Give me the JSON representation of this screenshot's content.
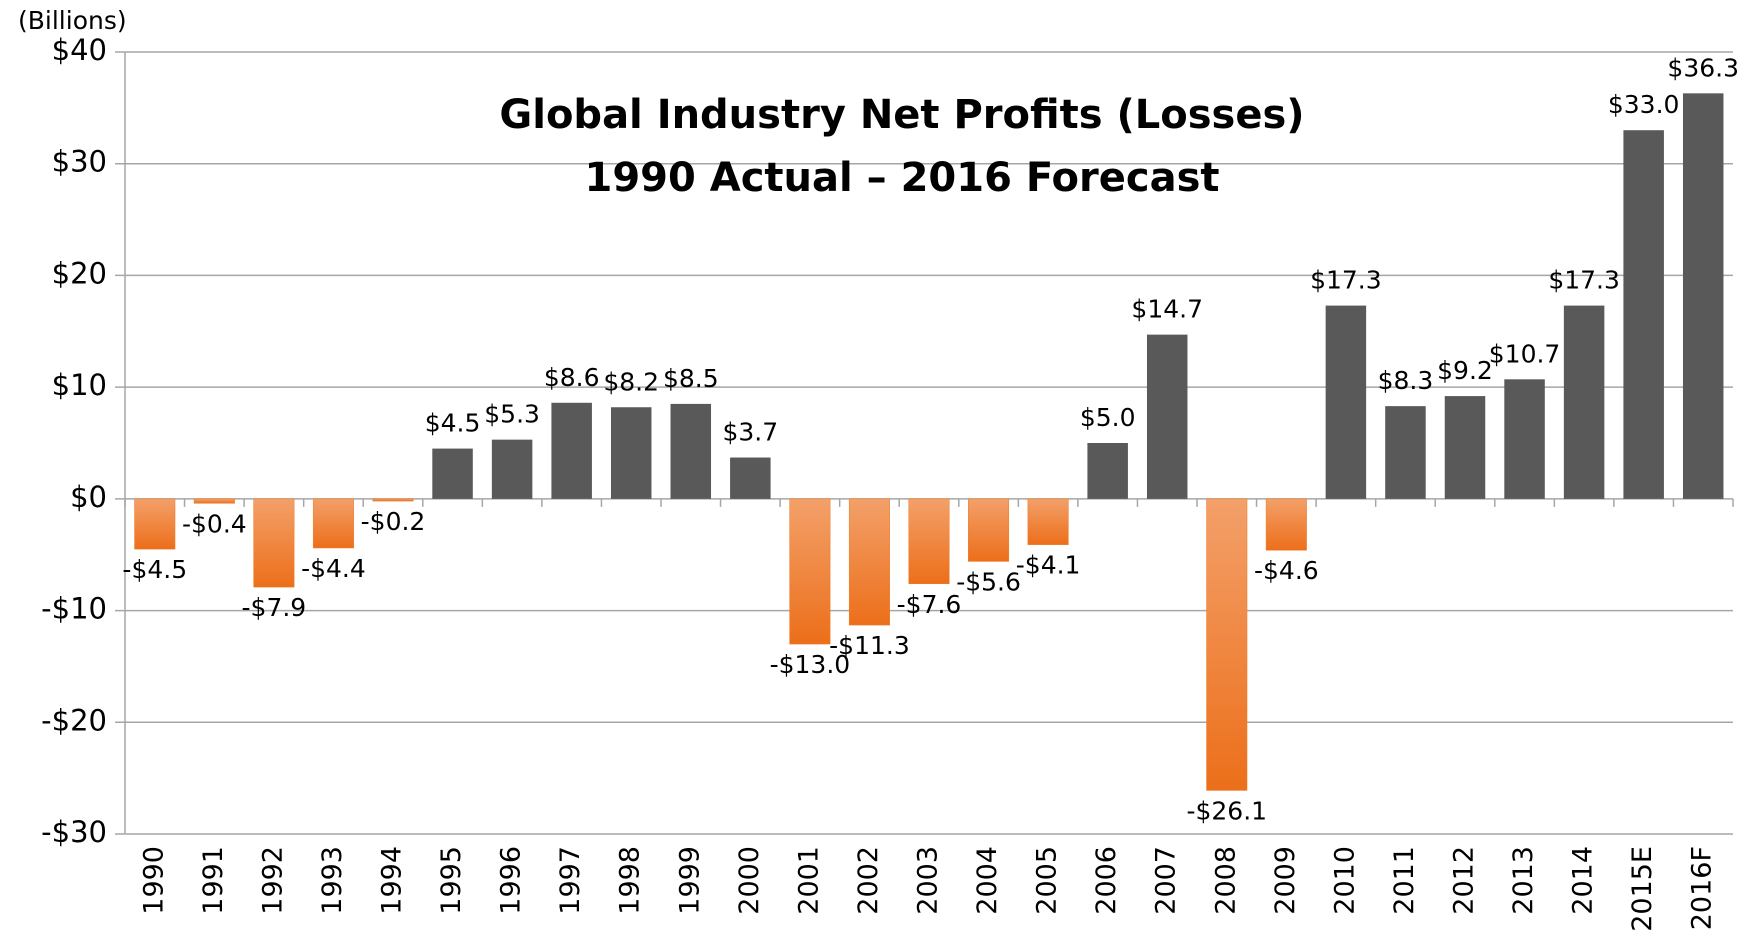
{
  "chart_data": {
    "type": "bar",
    "title": "Global Industry Net Profits (Losses)",
    "subtitle": "1990 Actual – 2016 Forecast",
    "y_axis_label": "(Billions)",
    "categories": [
      "1990",
      "1991",
      "1992",
      "1993",
      "1994",
      "1995",
      "1996",
      "1997",
      "1998",
      "1999",
      "2000",
      "2001",
      "2002",
      "2003",
      "2004",
      "2005",
      "2006",
      "2007",
      "2008",
      "2009",
      "2010",
      "2011",
      "2012",
      "2013",
      "2014",
      "2015E",
      "2016F"
    ],
    "values": [
      -4.5,
      -0.4,
      -7.9,
      -4.4,
      -0.2,
      4.5,
      5.3,
      8.6,
      8.2,
      8.5,
      3.7,
      -13.0,
      -11.3,
      -7.6,
      -5.6,
      -4.1,
      5.0,
      14.7,
      -26.1,
      -4.6,
      17.3,
      8.3,
      9.2,
      10.7,
      17.3,
      33.0,
      36.3
    ],
    "value_labels": [
      "-$4.5",
      "-$0.4",
      "-$7.9",
      "-$4.4",
      "-$0.2",
      "$4.5",
      "$5.3",
      "$8.6",
      "$8.2",
      "$8.5",
      "$3.7",
      "-$13.0",
      "-$11.3",
      "-$7.6",
      "-$5.6",
      "-$4.1",
      "$5.0",
      "$14.7",
      "-$26.1",
      "-$4.6",
      "$17.3",
      "$8.3",
      "$9.2",
      "$10.7",
      "$17.3",
      "$33.0",
      "$36.3"
    ],
    "positive_color": "#595959",
    "negative_color": "#f07b22",
    "ylim": [
      -30,
      40
    ],
    "yticks": [
      {
        "value": -30,
        "label": "-$30"
      },
      {
        "value": -20,
        "label": "-$20"
      },
      {
        "value": -10,
        "label": "-$10"
      },
      {
        "value": 0,
        "label": "$0"
      },
      {
        "value": 10,
        "label": "$10"
      },
      {
        "value": 20,
        "label": "$20"
      },
      {
        "value": 30,
        "label": "$30"
      },
      {
        "value": 40,
        "label": "$40"
      }
    ],
    "grid": true
  }
}
